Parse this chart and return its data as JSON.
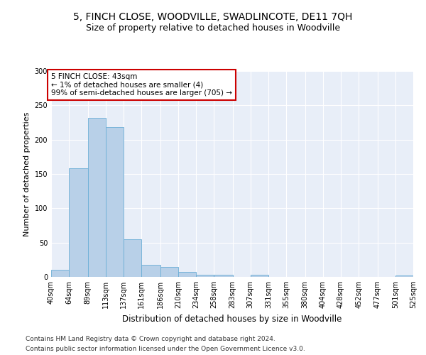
{
  "title": "5, FINCH CLOSE, WOODVILLE, SWADLINCOTE, DE11 7QH",
  "subtitle": "Size of property relative to detached houses in Woodville",
  "xlabel": "Distribution of detached houses by size in Woodville",
  "ylabel": "Number of detached properties",
  "bar_color": "#b8d0e8",
  "bar_edge_color": "#6baed6",
  "background_color": "#e8eef8",
  "grid_color": "#ffffff",
  "annotation_text": "5 FINCH CLOSE: 43sqm\n← 1% of detached houses are smaller (4)\n99% of semi-detached houses are larger (705) →",
  "bins": [
    40,
    64,
    89,
    113,
    137,
    161,
    186,
    210,
    234,
    258,
    283,
    307,
    331,
    355,
    380,
    404,
    428,
    452,
    477,
    501,
    525
  ],
  "bar_heights": [
    10,
    158,
    232,
    218,
    55,
    18,
    15,
    7,
    3,
    3,
    0,
    3,
    0,
    0,
    0,
    0,
    0,
    0,
    0,
    2
  ],
  "ylim": [
    0,
    300
  ],
  "yticks": [
    0,
    50,
    100,
    150,
    200,
    250,
    300
  ],
  "footer_line1": "Contains HM Land Registry data © Crown copyright and database right 2024.",
  "footer_line2": "Contains public sector information licensed under the Open Government Licence v3.0.",
  "title_fontsize": 10,
  "subtitle_fontsize": 9,
  "xlabel_fontsize": 8.5,
  "ylabel_fontsize": 8,
  "tick_fontsize": 7,
  "footer_fontsize": 6.5,
  "annotation_fontsize": 7.5
}
